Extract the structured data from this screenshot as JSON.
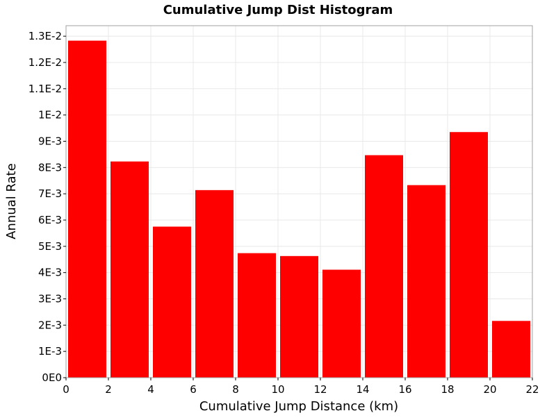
{
  "chart_data": {
    "type": "bar",
    "title": "Cumulative Jump Dist Histogram",
    "xlabel": "Cumulative Jump Distance (km)",
    "ylabel": "Annual Rate",
    "bar_color": "#ff0000",
    "grid": true,
    "legend": "none",
    "xlim": [
      0,
      22
    ],
    "ylim": [
      0,
      0.0134
    ],
    "x_ticks": [
      0,
      2,
      4,
      6,
      8,
      10,
      12,
      14,
      16,
      18,
      20,
      22
    ],
    "x_tick_labels": [
      "0",
      "2",
      "4",
      "6",
      "8",
      "10",
      "12",
      "14",
      "16",
      "18",
      "20",
      "22"
    ],
    "y_ticks": [
      0,
      0.001,
      0.002,
      0.003,
      0.004,
      0.005,
      0.006,
      0.007,
      0.008,
      0.009,
      0.01,
      0.011,
      0.012,
      0.013
    ],
    "y_tick_labels": [
      "0E0",
      "1E-3",
      "2E-3",
      "3E-3",
      "4E-3",
      "5E-3",
      "6E-3",
      "7E-3",
      "8E-3",
      "9E-3",
      "1E-2",
      "1.1E-2",
      "1.2E-2",
      "1.3E-2"
    ],
    "bin_width": 2,
    "x": [
      1,
      3,
      5,
      7,
      9,
      11,
      13,
      15,
      17,
      19,
      21
    ],
    "values": [
      0.01283,
      0.00823,
      0.00575,
      0.00714,
      0.00474,
      0.00463,
      0.00411,
      0.00847,
      0.00733,
      0.00935,
      0.00216
    ]
  }
}
